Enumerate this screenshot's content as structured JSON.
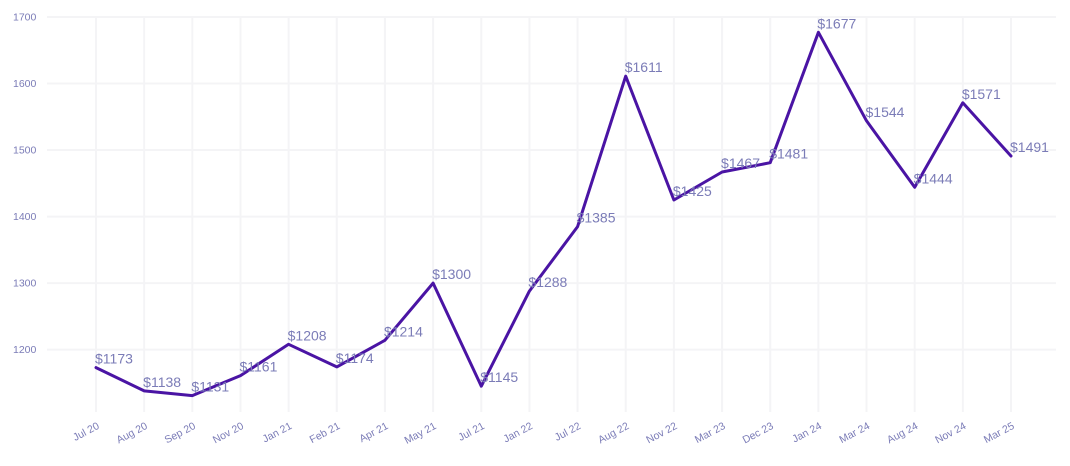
{
  "chart_data": {
    "type": "line",
    "title": "",
    "xlabel": "",
    "ylabel": "",
    "categories": [
      "Jul 20",
      "Aug 20",
      "Sep 20",
      "Nov 20",
      "Jan 21",
      "Feb 21",
      "Apr 21",
      "May 21",
      "Jul 21",
      "Jan 22",
      "Jul 22",
      "Aug 22",
      "Nov 22",
      "Mar 23",
      "Dec 23",
      "Jan 24",
      "Mar 24",
      "Aug 24",
      "Nov 24",
      "Mar 25"
    ],
    "series": [
      {
        "values": [
          1173,
          1138,
          1131,
          1161,
          1208,
          1174,
          1214,
          1300,
          1145,
          1288,
          1385,
          1611,
          1425,
          1467,
          1481,
          1677,
          1544,
          1444,
          1571,
          1491
        ],
        "labels": [
          "$1173",
          "$1138",
          "$1131",
          "$1161",
          "$1208",
          "$1174",
          "$1214",
          "$1300",
          "$1145",
          "$1288",
          "$1385",
          "$1611",
          "$1425",
          "$1467",
          "$1481",
          "$1677",
          "$1544",
          "$1444",
          "$1571",
          "$1491"
        ]
      }
    ],
    "ylim": [
      1100,
      1700
    ],
    "yticks": [
      1200,
      1300,
      1400,
      1500,
      1600,
      1700
    ],
    "grid": true,
    "legend": "none"
  },
  "colors": {
    "line": "#4a14a4",
    "tick_text": "#7b7cb7",
    "label_text": "#7b7cb7",
    "grid": "#f4f4f6"
  }
}
